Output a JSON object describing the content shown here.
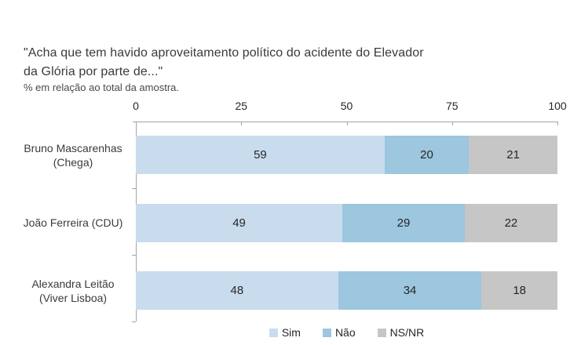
{
  "chart_data": {
    "type": "bar",
    "orientation": "horizontal",
    "stacked": true,
    "title": "\"Acha que tem havido aproveitamento político do acidente do Elevador da Glória por parte de...\"",
    "title_lines": [
      "\"Acha que tem havido aproveitamento político do acidente do Elevador",
      "da Glória por parte de...\""
    ],
    "subtitle": "% em relação ao total da amostra.",
    "categories": [
      "Bruno Mascarenhas (Chega)",
      "João Ferreira (CDU)",
      "Alexandra Leitão (Viver Lisboa)"
    ],
    "category_label_lines": [
      [
        "Bruno Mascarenhas",
        "(Chega)"
      ],
      [
        "João Ferreira (CDU)"
      ],
      [
        "Alexandra Leitão",
        "(Viver Lisboa)"
      ]
    ],
    "series": [
      {
        "name": "Sim",
        "color": "#c9dcee",
        "values": [
          59,
          49,
          48
        ]
      },
      {
        "name": "Não",
        "color": "#9dc6df",
        "values": [
          20,
          29,
          34
        ]
      },
      {
        "name": "NS/NR",
        "color": "#c6c6c6",
        "values": [
          21,
          22,
          18
        ]
      }
    ],
    "x_ticks": [
      0,
      25,
      50,
      75,
      100
    ],
    "xlim": [
      0,
      100
    ],
    "grid": false,
    "legend_position": "bottom",
    "value_labels": "inside-center"
  },
  "colors": {
    "axis": "#a3a3a3",
    "title_text": "#3a3a3a",
    "value_text": "#262626",
    "background": "#ffffff"
  }
}
